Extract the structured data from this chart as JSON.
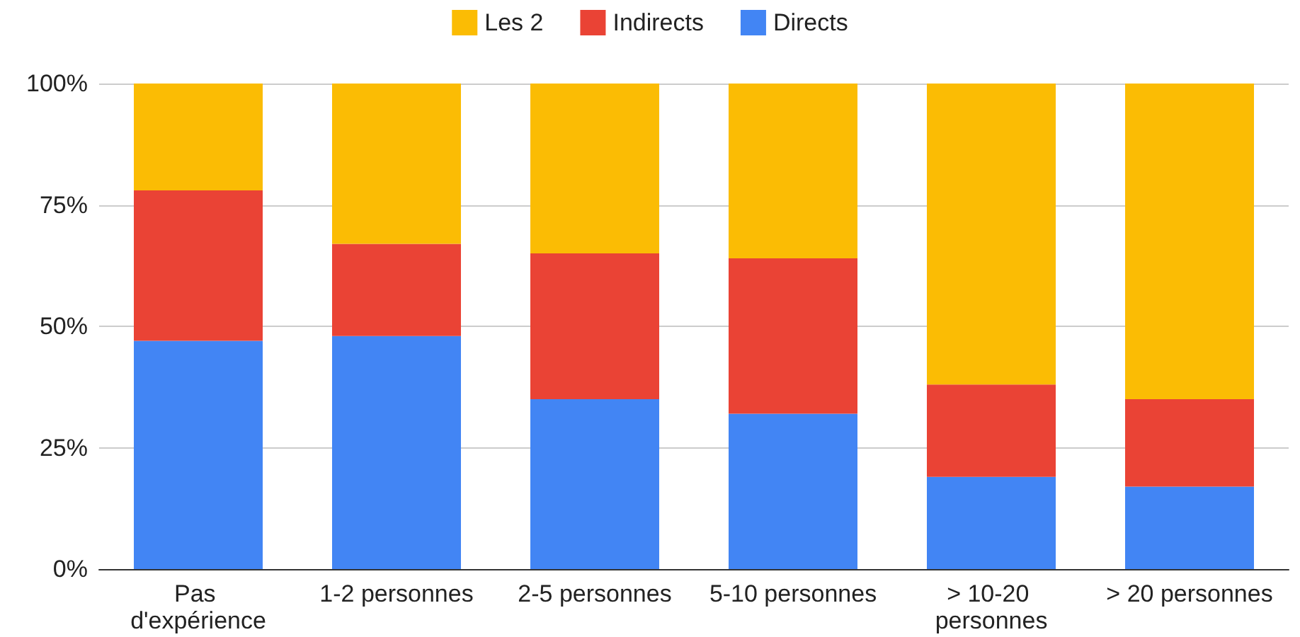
{
  "chart_data": {
    "type": "bar",
    "stacked": true,
    "categories": [
      "Pas d'expérience",
      "1-2 personnes",
      "2-5 personnes",
      "5-10 personnes",
      "> 10-20 personnes",
      "> 20 personnes"
    ],
    "series": [
      {
        "name": "Directs",
        "color": "#4285f4",
        "values": [
          47,
          48,
          35,
          32,
          19,
          17
        ]
      },
      {
        "name": "Indirects",
        "color": "#ea4335",
        "values": [
          31,
          19,
          30,
          32,
          19,
          18
        ]
      },
      {
        "name": "Les 2",
        "color": "#fbbc04",
        "values": [
          22,
          33,
          35,
          36,
          62,
          65
        ]
      }
    ],
    "ylim": [
      0,
      100
    ],
    "yticks": [
      {
        "value": 0,
        "label": "0%"
      },
      {
        "value": 25,
        "label": "25%"
      },
      {
        "value": 50,
        "label": "50%"
      },
      {
        "value": 75,
        "label": "75%"
      },
      {
        "value": 100,
        "label": "100%"
      }
    ],
    "grid": "y",
    "legend": "top"
  }
}
